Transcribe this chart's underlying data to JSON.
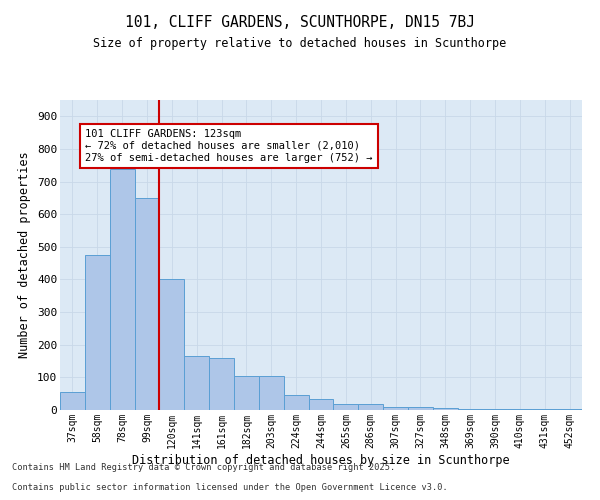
{
  "title": "101, CLIFF GARDENS, SCUNTHORPE, DN15 7BJ",
  "subtitle": "Size of property relative to detached houses in Scunthorpe",
  "xlabel": "Distribution of detached houses by size in Scunthorpe",
  "ylabel": "Number of detached properties",
  "categories": [
    "37sqm",
    "58sqm",
    "78sqm",
    "99sqm",
    "120sqm",
    "141sqm",
    "161sqm",
    "182sqm",
    "203sqm",
    "224sqm",
    "244sqm",
    "265sqm",
    "286sqm",
    "307sqm",
    "327sqm",
    "348sqm",
    "369sqm",
    "390sqm",
    "410sqm",
    "431sqm",
    "452sqm"
  ],
  "values": [
    55,
    475,
    740,
    650,
    400,
    165,
    160,
    105,
    105,
    45,
    35,
    18,
    18,
    10,
    10,
    6,
    4,
    2,
    2,
    2,
    2
  ],
  "bar_color": "#aec6e8",
  "bar_edge_color": "#5a9fd4",
  "vline_color": "#cc0000",
  "vline_position": 3.5,
  "annotation_title": "101 CLIFF GARDENS: 123sqm",
  "annotation_line1": "← 72% of detached houses are smaller (2,010)",
  "annotation_line2": "27% of semi-detached houses are larger (752) →",
  "annotation_box_edgecolor": "#cc0000",
  "annotation_bg_color": "#ffffff",
  "grid_color": "#c8d8e8",
  "bg_color": "#dce9f5",
  "footer_line1": "Contains HM Land Registry data © Crown copyright and database right 2025.",
  "footer_line2": "Contains public sector information licensed under the Open Government Licence v3.0.",
  "ylim": [
    0,
    950
  ],
  "yticks": [
    0,
    100,
    200,
    300,
    400,
    500,
    600,
    700,
    800,
    900
  ]
}
